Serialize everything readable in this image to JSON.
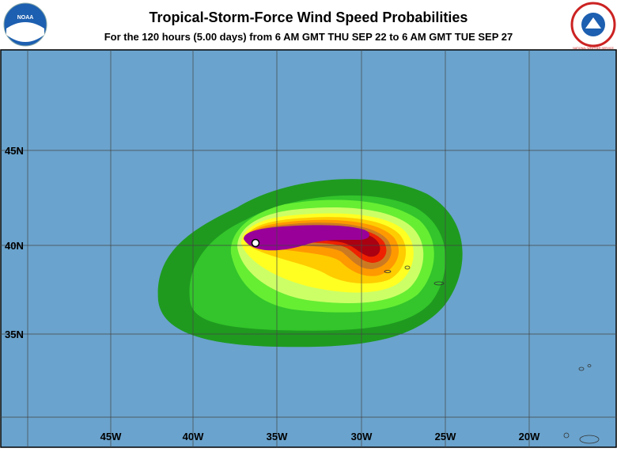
{
  "header": {
    "title": "Tropical-Storm-Force Wind Speed Probabilities",
    "subtitle": "For the 120 hours (5.00 days) from 6 AM GMT THU SEP 22 to 6 AM GMT TUE SEP 27",
    "logo_left": "NOAA",
    "logo_right": "NATIONAL WEATHER SERVICE"
  },
  "map": {
    "lat_labels": [
      "45N",
      "40N",
      "35N"
    ],
    "lon_labels": [
      "45W",
      "40W",
      "35W",
      "30W",
      "25W",
      "20W"
    ]
  }
}
